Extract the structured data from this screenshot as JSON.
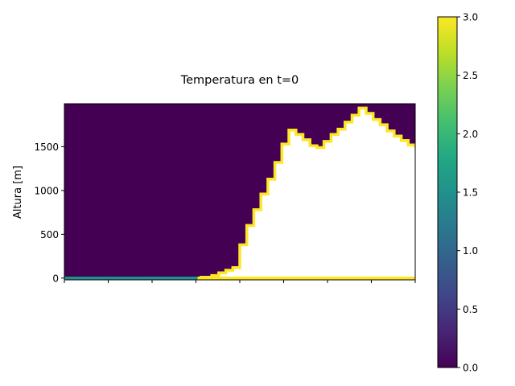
{
  "chart_data": [
    {
      "type": "heatmap",
      "title": "Temperatura en t=0",
      "xlabel": "",
      "ylabel": "Altura [m]",
      "ylim": [
        -20,
        1990
      ],
      "yticks": [
        0,
        500,
        1000,
        1500
      ],
      "ytick_labels": [
        "0",
        "500",
        "1000",
        "1500"
      ],
      "xlim": [
        0,
        100
      ],
      "xticks": [
        0,
        12.5,
        25,
        37.5,
        50,
        62.5,
        75,
        87.5,
        100
      ],
      "xtick_labels_visible": false,
      "grid": false,
      "background_value": 0.0,
      "interior_color": "#ffffff",
      "terrain_profile": {
        "x": [
          0,
          38,
          39,
          42,
          44,
          46,
          48,
          50,
          52,
          54,
          56,
          58,
          60,
          62,
          64,
          66,
          68,
          70,
          72,
          74,
          76,
          78,
          80,
          82,
          84,
          86,
          88,
          90,
          92,
          94,
          96,
          98,
          100
        ],
        "y": [
          0,
          0,
          10,
          30,
          60,
          90,
          120,
          380,
          600,
          780,
          960,
          1130,
          1320,
          1530,
          1690,
          1640,
          1580,
          1510,
          1490,
          1560,
          1640,
          1700,
          1780,
          1860,
          1940,
          1880,
          1810,
          1750,
          1680,
          1620,
          1570,
          1520,
          1490
        ]
      },
      "boundary_segments": [
        {
          "x0": 0,
          "x1": 38,
          "value": 1.5
        },
        {
          "x0": 38,
          "x1": 100,
          "value": 3.0
        }
      ],
      "colorbar": {
        "colormap": "viridis",
        "vmin": 0.0,
        "vmax": 3.0,
        "ticks": [
          0.0,
          0.5,
          1.0,
          1.5,
          2.0,
          2.5,
          3.0
        ],
        "tick_labels": [
          "0.0",
          "0.5",
          "1.0",
          "1.5",
          "2.0",
          "2.5",
          "3.0"
        ],
        "location": "right"
      },
      "colors": {
        "low": "#440154",
        "mid": "#21918c",
        "high": "#fde725"
      }
    }
  ]
}
